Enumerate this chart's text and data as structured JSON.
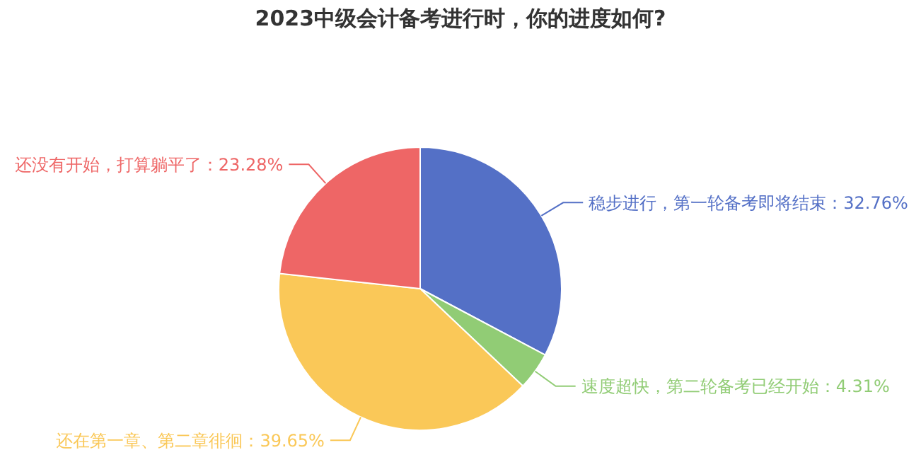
{
  "chart_data": {
    "type": "pie",
    "title": "2023中级会计备考进行时，你的进度如何?",
    "categories": [
      "稳步进行，第一轮备考即将结束",
      "速度超快，第二轮备考已经开始",
      "还在第一章、第二章徘徊",
      "还没有开始，打算躺平了"
    ],
    "values": [
      32.76,
      4.31,
      39.65,
      23.28
    ],
    "value_labels": [
      "32.76%",
      "4.31%",
      "39.65%",
      "23.28%"
    ],
    "colors": [
      "#5470c6",
      "#91cc75",
      "#fac858",
      "#ee6666"
    ]
  }
}
